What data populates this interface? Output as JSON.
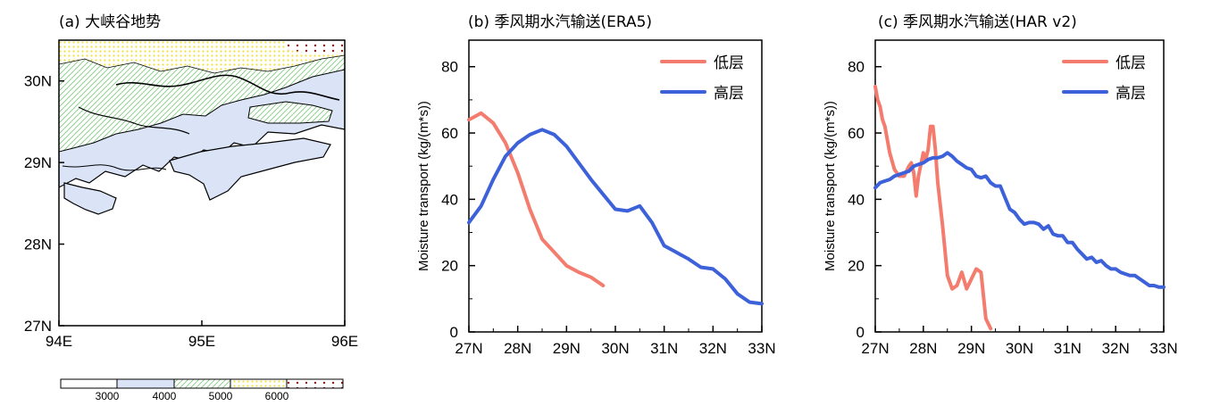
{
  "figure": {
    "titles": [
      "(a) 大峡谷地势",
      "(b) 季风期水汽输送(ERA5)",
      "(c) 季风期水汽输送(HAR v2)"
    ]
  },
  "colors": {
    "lowLayer": "#f47c6e",
    "highLayer": "#3d61d9",
    "band3000": "#dbe4f7",
    "band4000": "#7fc97f",
    "band5000": "#f2e13a",
    "band6000": "#8b1a1a"
  },
  "chart_data": [
    {
      "type": "contour_map",
      "title": "(a) 大峡谷地势",
      "xticks": [
        "94E",
        "95E",
        "96E"
      ],
      "yticks": [
        "27N",
        "28N",
        "29N",
        "30N"
      ],
      "xlim": [
        94,
        96
      ],
      "ylim": [
        27,
        30.5
      ],
      "colorbar": {
        "levels": [
          "3000",
          "4000",
          "5000",
          "6000"
        ]
      }
    },
    {
      "type": "line",
      "title": "(b) 季风期水汽输送(ERA5)",
      "ylabel": "Moisture transport (kg/(m*s))",
      "xticks": [
        "27N",
        "28N",
        "29N",
        "30N",
        "31N",
        "32N",
        "33N"
      ],
      "yticks": [
        "0",
        "20",
        "40",
        "60",
        "80"
      ],
      "xlim": [
        27,
        33
      ],
      "ylim": [
        0,
        88
      ],
      "legend": "top-right",
      "series": [
        {
          "name": "低层",
          "color": "lowLayer",
          "x": [
            27.0,
            27.25,
            27.5,
            27.75,
            28.0,
            28.25,
            28.5,
            28.75,
            29.0,
            29.25,
            29.5,
            29.75
          ],
          "y": [
            64,
            66,
            63,
            57,
            48,
            37,
            28,
            24,
            20,
            18,
            16.5,
            14
          ]
        },
        {
          "name": "高层",
          "color": "highLayer",
          "x": [
            27.0,
            27.25,
            27.5,
            27.75,
            28.0,
            28.25,
            28.5,
            28.75,
            29.0,
            29.25,
            29.5,
            29.75,
            30.0,
            30.25,
            30.5,
            30.75,
            31.0,
            31.25,
            31.5,
            31.75,
            32.0,
            32.25,
            32.5,
            32.75,
            33.0
          ],
          "y": [
            33,
            38,
            46,
            53,
            57,
            59.5,
            61,
            59.5,
            56,
            51,
            46,
            41.5,
            37,
            36.5,
            38,
            33,
            26,
            24,
            22,
            19.5,
            19,
            16,
            11.5,
            9,
            8.5
          ]
        }
      ]
    },
    {
      "type": "line",
      "title": "(c) 季风期水汽输送(HAR v2)",
      "ylabel": "Moisture transport (kg/(m*s))",
      "xticks": [
        "27N",
        "28N",
        "29N",
        "30N",
        "31N",
        "32N",
        "33N"
      ],
      "yticks": [
        "0",
        "20",
        "40",
        "60",
        "80"
      ],
      "xlim": [
        27,
        33
      ],
      "ylim": [
        0,
        88
      ],
      "legend": "top-right",
      "series": [
        {
          "name": "低层",
          "color": "lowLayer",
          "x": [
            27.0,
            27.05,
            27.1,
            27.15,
            27.2,
            27.3,
            27.4,
            27.5,
            27.6,
            27.7,
            27.75,
            27.8,
            27.85,
            27.9,
            28.0,
            28.05,
            28.1,
            28.15,
            28.2,
            28.25,
            28.3,
            28.4,
            28.5,
            28.6,
            28.7,
            28.8,
            28.9,
            29.0,
            29.1,
            29.2,
            29.3,
            29.4
          ],
          "y": [
            74,
            70,
            68,
            64,
            62,
            54,
            49,
            47,
            47,
            50,
            51,
            48,
            41,
            47,
            54,
            52,
            55,
            62,
            62,
            55,
            45,
            32,
            17,
            13,
            14,
            18,
            13,
            16,
            19,
            18,
            4,
            1
          ]
        },
        {
          "name": "高层",
          "color": "highLayer",
          "x": [
            27.0,
            27.1,
            27.2,
            27.3,
            27.4,
            27.5,
            27.6,
            27.7,
            27.8,
            27.9,
            28.0,
            28.1,
            28.2,
            28.3,
            28.4,
            28.5,
            28.6,
            28.7,
            28.8,
            28.9,
            29.0,
            29.1,
            29.2,
            29.3,
            29.4,
            29.5,
            29.6,
            29.7,
            29.8,
            29.9,
            30.0,
            30.1,
            30.2,
            30.3,
            30.4,
            30.5,
            30.6,
            30.7,
            30.8,
            30.9,
            31.0,
            31.1,
            31.2,
            31.3,
            31.4,
            31.5,
            31.6,
            31.7,
            31.8,
            31.9,
            32.0,
            32.1,
            32.2,
            32.3,
            32.4,
            32.5,
            32.6,
            32.7,
            32.8,
            32.9,
            33.0
          ],
          "y": [
            43.5,
            45,
            45.5,
            46,
            47,
            47.5,
            48,
            48.5,
            50,
            50.5,
            51,
            52,
            52.5,
            52.5,
            53,
            54,
            53,
            51.5,
            50.5,
            49.5,
            49,
            47,
            46.5,
            47,
            45,
            44,
            44,
            40.5,
            37,
            36,
            34,
            32.5,
            33,
            33,
            32.5,
            31,
            32,
            29.5,
            29,
            29,
            27,
            27,
            25,
            23.5,
            22,
            22.5,
            21,
            21.5,
            20,
            19,
            19,
            18,
            17.5,
            17,
            17,
            16,
            15,
            14,
            14,
            13.5,
            13.5
          ]
        }
      ]
    }
  ]
}
